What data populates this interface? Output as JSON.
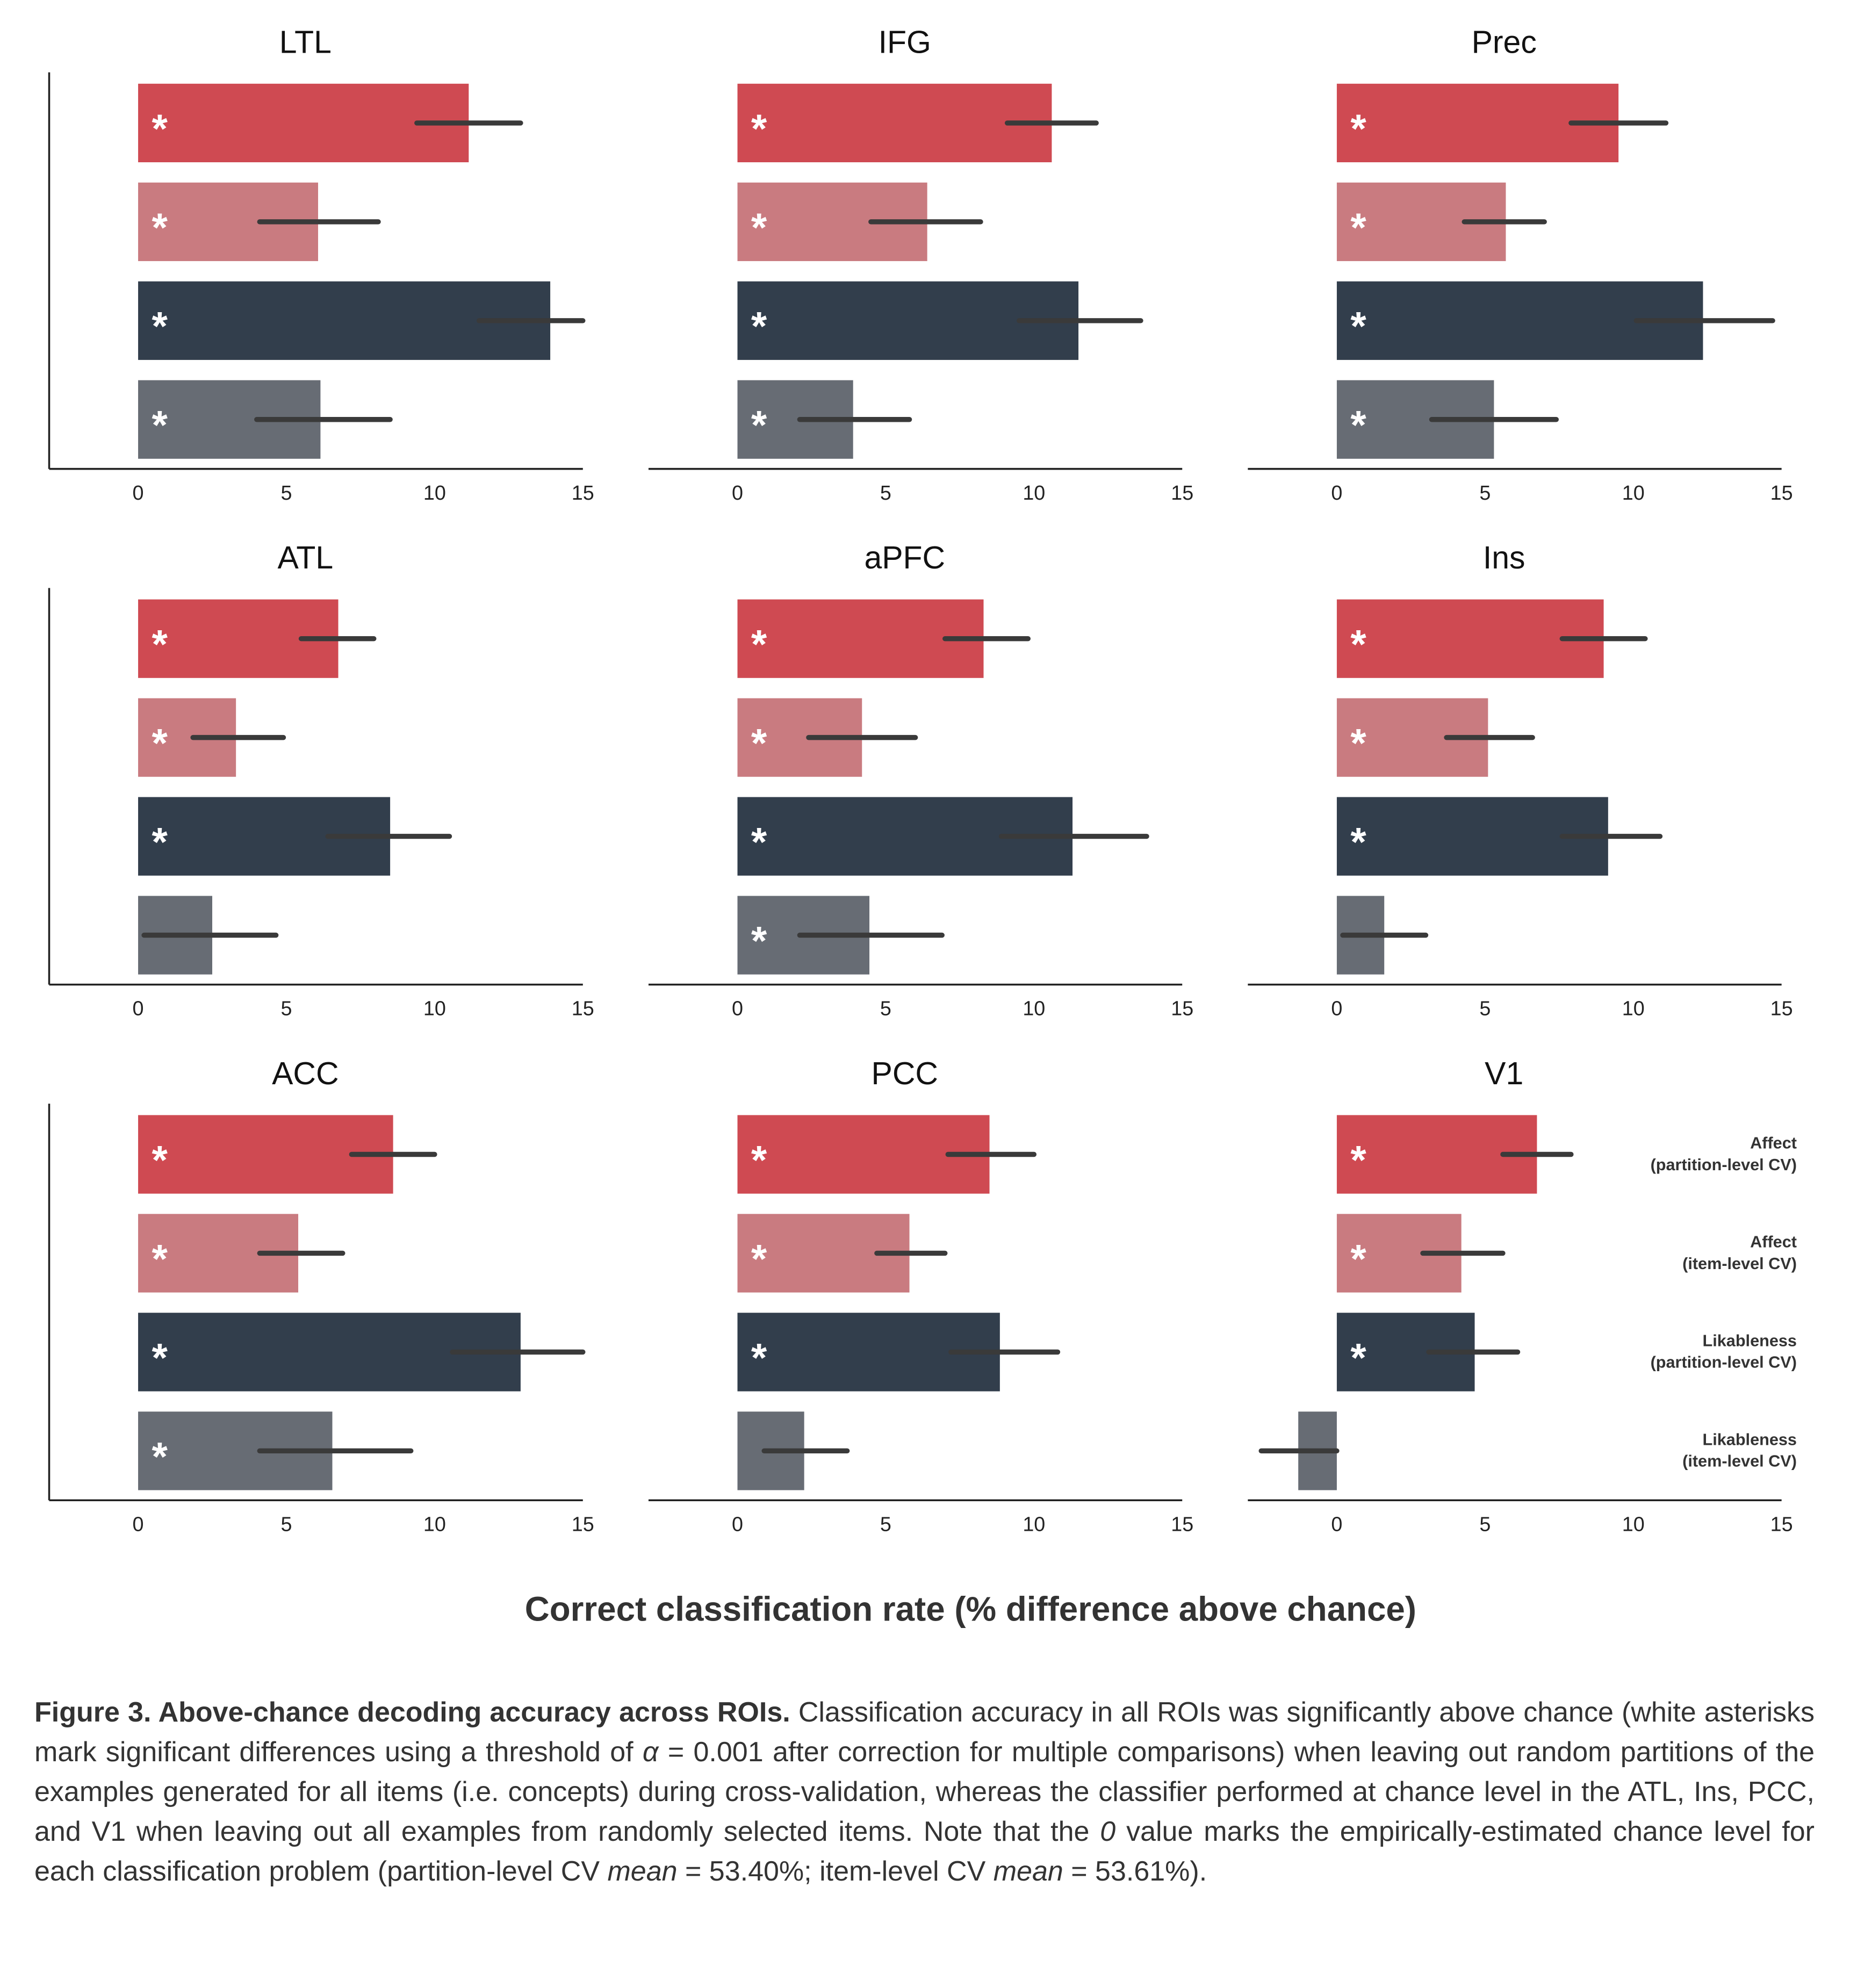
{
  "chart_data": [
    {
      "type": "bar",
      "title": "LTL",
      "values": [
        11.15,
        6.07,
        13.9,
        6.15
      ],
      "ci": [
        [
          9.4,
          12.9
        ],
        [
          4.1,
          8.1
        ],
        [
          11.5,
          15
        ],
        [
          4.0,
          8.5
        ]
      ],
      "significant": [
        true,
        true,
        true,
        true
      ],
      "marker": "*",
      "xlim": [
        -3,
        15
      ],
      "xticks": [
        0,
        5,
        10,
        15
      ],
      "left_spine": true
    },
    {
      "type": "bar",
      "title": "IFG",
      "values": [
        10.6,
        6.4,
        11.5,
        3.9
      ],
      "ci": [
        [
          9.1,
          12.1
        ],
        [
          4.5,
          8.2
        ],
        [
          9.5,
          13.6
        ],
        [
          2.1,
          5.8
        ]
      ],
      "significant": [
        true,
        true,
        true,
        true
      ],
      "marker": "*",
      "xlim": [
        -3,
        15
      ],
      "xticks": [
        0,
        5,
        10,
        15
      ],
      "left_spine": false
    },
    {
      "type": "bar",
      "title": "Prec",
      "values": [
        9.5,
        5.7,
        12.35,
        5.3
      ],
      "ci": [
        [
          7.9,
          11.1
        ],
        [
          4.3,
          7.0
        ],
        [
          10.1,
          14.7
        ],
        [
          3.2,
          7.4
        ]
      ],
      "significant": [
        true,
        true,
        true,
        true
      ],
      "marker": "*",
      "xlim": [
        -3,
        15
      ],
      "xticks": [
        0,
        5,
        10,
        15
      ],
      "left_spine": false
    },
    {
      "type": "bar",
      "title": "ATL",
      "values": [
        6.75,
        3.3,
        8.5,
        2.5
      ],
      "ci": [
        [
          5.5,
          7.95
        ],
        [
          1.85,
          4.9
        ],
        [
          6.4,
          10.5
        ],
        [
          0.2,
          4.65
        ]
      ],
      "significant": [
        true,
        true,
        true,
        false
      ],
      "marker": "*",
      "xlim": [
        -3,
        15
      ],
      "xticks": [
        0,
        5,
        10,
        15
      ],
      "left_spine": true
    },
    {
      "type": "bar",
      "title": "aPFC",
      "values": [
        8.3,
        4.2,
        11.3,
        4.45
      ],
      "ci": [
        [
          7.0,
          9.8
        ],
        [
          2.4,
          6.0
        ],
        [
          8.9,
          13.8
        ],
        [
          2.1,
          6.9
        ]
      ],
      "significant": [
        true,
        true,
        true,
        true
      ],
      "marker": "*",
      "xlim": [
        -3,
        15
      ],
      "xticks": [
        0,
        5,
        10,
        15
      ],
      "left_spine": false
    },
    {
      "type": "bar",
      "title": "Ins",
      "values": [
        9.0,
        5.1,
        9.15,
        1.6
      ],
      "ci": [
        [
          7.6,
          10.4
        ],
        [
          3.7,
          6.6
        ],
        [
          7.6,
          10.9
        ],
        [
          0.2,
          3.0
        ]
      ],
      "significant": [
        true,
        true,
        true,
        false
      ],
      "marker": "*",
      "xlim": [
        -3,
        15
      ],
      "xticks": [
        0,
        5,
        10,
        15
      ],
      "left_spine": false
    },
    {
      "type": "bar",
      "title": "ACC",
      "values": [
        8.6,
        5.4,
        12.9,
        6.55
      ],
      "ci": [
        [
          7.2,
          10.0
        ],
        [
          4.1,
          6.9
        ],
        [
          10.6,
          15
        ],
        [
          4.1,
          9.2
        ]
      ],
      "significant": [
        true,
        true,
        true,
        true
      ],
      "marker": "*",
      "xlim": [
        -3,
        15
      ],
      "xticks": [
        0,
        5,
        10,
        15
      ],
      "left_spine": true
    },
    {
      "type": "bar",
      "title": "PCC",
      "values": [
        8.5,
        5.8,
        8.85,
        2.25
      ],
      "ci": [
        [
          7.1,
          10.0
        ],
        [
          4.7,
          7.0
        ],
        [
          7.2,
          10.8
        ],
        [
          0.9,
          3.7
        ]
      ],
      "significant": [
        true,
        true,
        true,
        false
      ],
      "marker": "*",
      "xlim": [
        -3,
        15
      ],
      "xticks": [
        0,
        5,
        10,
        15
      ],
      "left_spine": false
    },
    {
      "type": "bar",
      "title": "V1",
      "values": [
        6.75,
        4.2,
        4.65,
        -1.3
      ],
      "ci": [
        [
          5.6,
          7.9
        ],
        [
          2.9,
          5.6
        ],
        [
          3.1,
          6.1
        ],
        [
          -2.55,
          0
        ]
      ],
      "significant": [
        true,
        true,
        true,
        false
      ],
      "marker": "*",
      "xlim": [
        -3,
        15
      ],
      "xticks": [
        0,
        5,
        10,
        15
      ],
      "left_spine": false,
      "legend": "right"
    }
  ],
  "figure": {
    "categories": [
      [
        "Affect",
        "(partition-level CV)"
      ],
      [
        "Affect",
        "(item-level CV)"
      ],
      [
        "Likableness",
        "(partition-level CV)"
      ],
      [
        "Likableness",
        "(item-level CV)"
      ]
    ],
    "colors": [
      "#cf4a52",
      "#c97b80",
      "#323e4c",
      "#676c74"
    ],
    "xlabel": "Correct classification rate (% difference above chance)",
    "caption": [
      {
        "text": "Figure 3. Above-chance decoding accuracy across ROIs.",
        "style": "bold"
      },
      {
        "text": " Classification accuracy in all ROIs was significantly above chance (white asterisks mark significant differences using a threshold of ",
        "style": "normal"
      },
      {
        "text": "α",
        "style": "italic"
      },
      {
        "text": " = 0.001 after correction for multiple comparisons) when leaving out random partitions of the examples generated for all items (i.e. concepts) during cross-validation, whereas the classifier performed at chance level in the ATL, Ins, PCC, and V1 when leaving out all examples from randomly selected items. Note that the ",
        "style": "normal"
      },
      {
        "text": "0",
        "style": "italic"
      },
      {
        "text": " value marks the empirically-estimated chance level for each classification problem (partition-level CV ",
        "style": "normal"
      },
      {
        "text": "mean",
        "style": "italic"
      },
      {
        "text": " = 53.40%; item-level CV ",
        "style": "normal"
      },
      {
        "text": "mean",
        "style": "italic"
      },
      {
        "text": " = 53.61%).",
        "style": "normal"
      }
    ]
  }
}
